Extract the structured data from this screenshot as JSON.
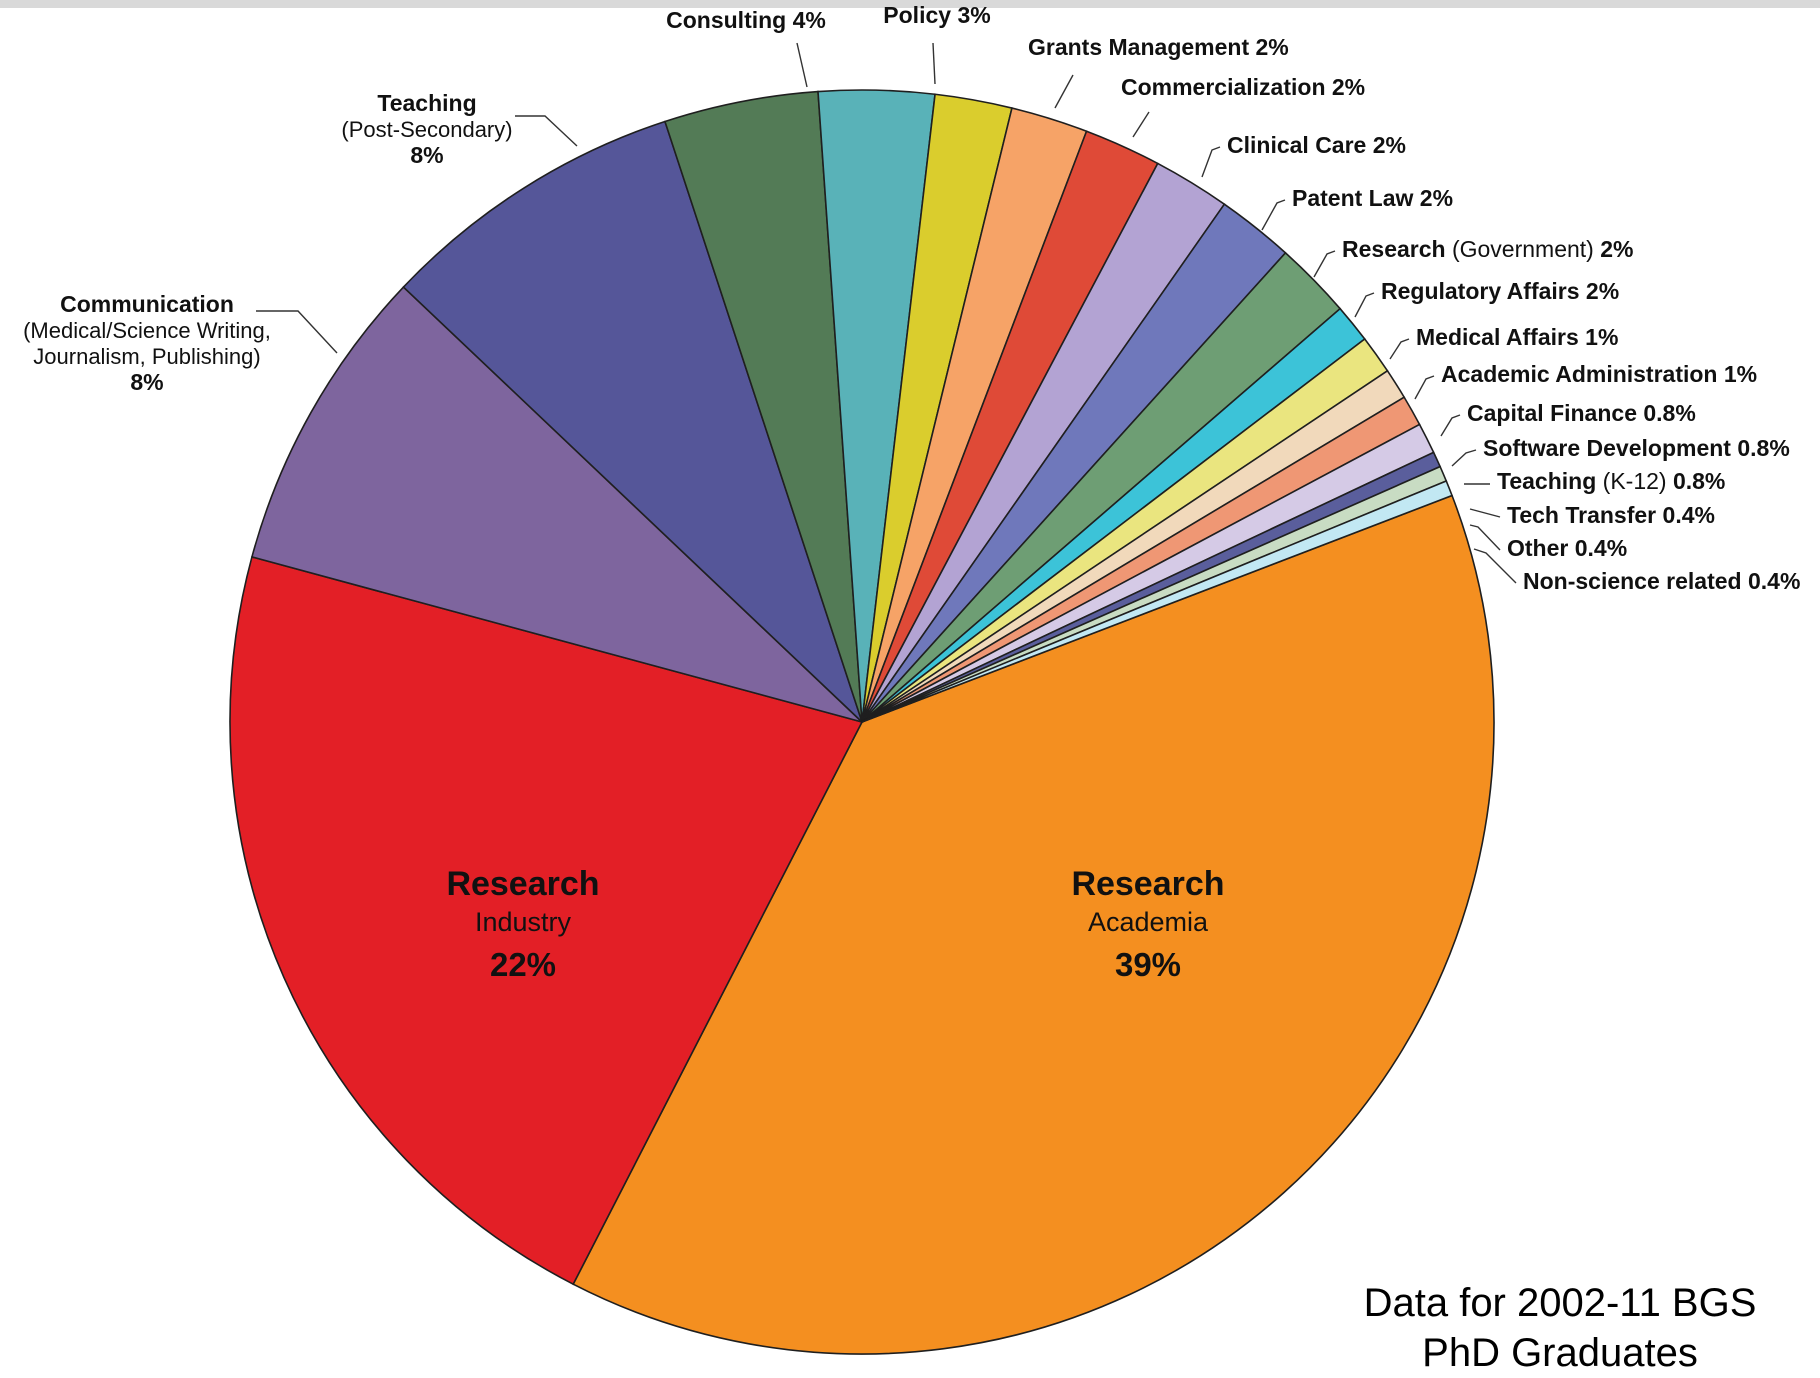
{
  "chart_data": {
    "type": "pie",
    "slices": [
      {
        "label": "Research",
        "sublabel": "Academia",
        "value": 39,
        "value_label": "39%",
        "color": "#f48f20"
      },
      {
        "label": "Research",
        "sublabel": "Industry",
        "value": 22,
        "value_label": "22%",
        "color": "#e31f26"
      },
      {
        "label": "Communication",
        "sublabel": "(Medical/Science Writing, Journalism, Publishing)",
        "value": 8,
        "value_label": "8%",
        "color": "#7e659e"
      },
      {
        "label": "Teaching",
        "sublabel": "(Post-Secondary)",
        "value": 8,
        "value_label": "8%",
        "color": "#555699"
      },
      {
        "label": "Consulting",
        "value": 4,
        "value_label": "4%",
        "color": "#537b56"
      },
      {
        "label": "Policy",
        "value": 3,
        "value_label": "3%",
        "color": "#59b2b8"
      },
      {
        "label": "Grants Management",
        "value": 2,
        "value_label": "2%",
        "color": "#dacd2d"
      },
      {
        "label": "Commercialization",
        "value": 2,
        "value_label": "2%",
        "color": "#f6a367"
      },
      {
        "label": "Clinical Care",
        "value": 2,
        "value_label": "2%",
        "color": "#df4a37"
      },
      {
        "label": "Patent Law",
        "value": 2,
        "value_label": "2%",
        "color": "#b3a3d3"
      },
      {
        "label": "Research",
        "sublabel": "(Government)",
        "value": 2,
        "value_label": "2%",
        "color": "#6f78bb"
      },
      {
        "label": "Regulatory Affairs",
        "value": 2,
        "value_label": "2%",
        "color": "#6e9e74"
      },
      {
        "label": "Medical Affairs",
        "value": 1,
        "value_label": "1%",
        "color": "#3cc3d8"
      },
      {
        "label": "Academic Administration",
        "value": 1,
        "value_label": "1%",
        "color": "#eae57f"
      },
      {
        "label": "Capital Finance",
        "value": 0.8,
        "value_label": "0.8%",
        "color": "#f1d9bb"
      },
      {
        "label": "Software Development",
        "value": 0.8,
        "value_label": "0.8%",
        "color": "#ef9774"
      },
      {
        "label": "Teaching",
        "sublabel": "(K-12)",
        "value": 0.8,
        "value_label": "0.8%",
        "color": "#d5cae6"
      },
      {
        "label": "Tech Transfer",
        "value": 0.4,
        "value_label": "0.4%",
        "color": "#5a5e9c"
      },
      {
        "label": "Other",
        "value": 0.4,
        "value_label": "0.4%",
        "color": "#c8dcc3"
      },
      {
        "label": "Non-science related",
        "value": 0.4,
        "value_label": "0.4%",
        "color": "#c2e8f3"
      }
    ]
  },
  "note": {
    "line1": "Data for 2002-11 BGS",
    "line2": "PhD Graduates"
  }
}
